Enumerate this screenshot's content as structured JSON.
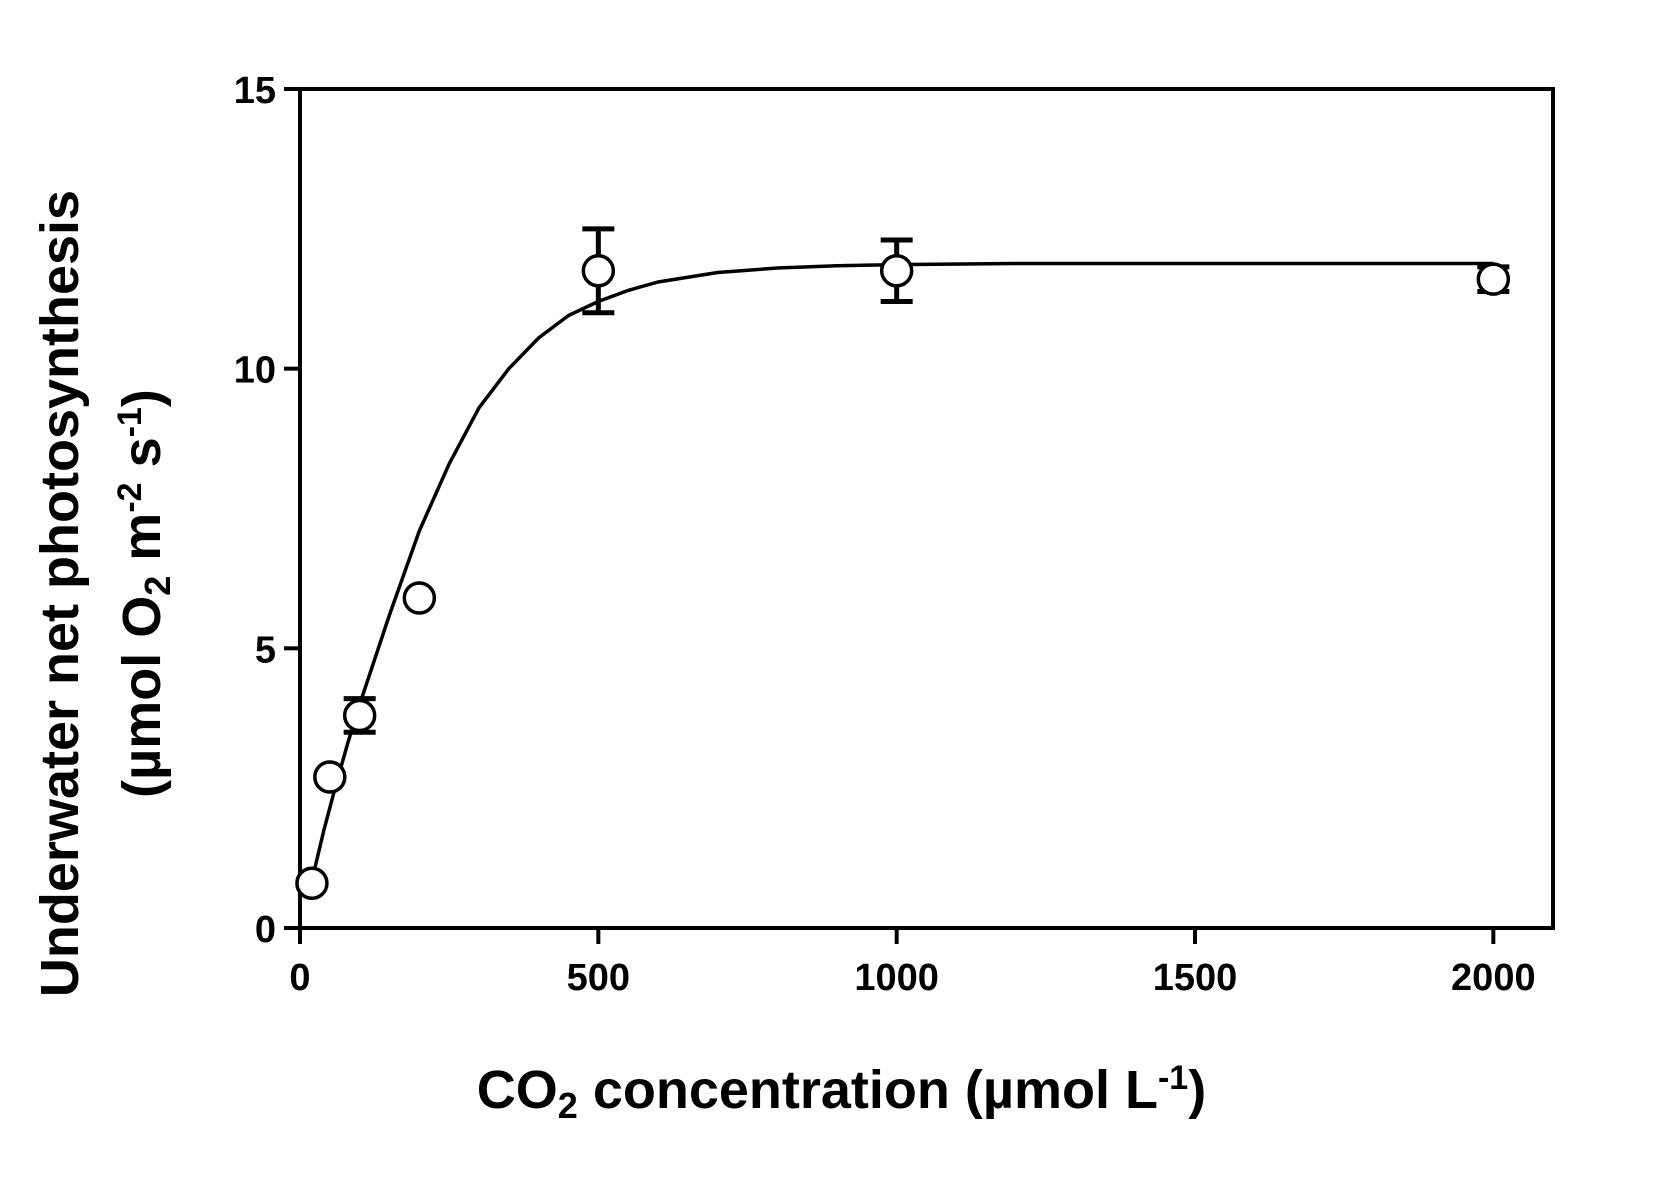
{
  "chart_data": {
    "type": "scatter",
    "title": "",
    "xlabel": {
      "parts": [
        {
          "t": "CO",
          "s": "n"
        },
        {
          "t": "2",
          "s": "sub"
        },
        {
          "t": " concentration (µmol L",
          "s": "n"
        },
        {
          "t": "-1",
          "s": "sup"
        },
        {
          "t": ")",
          "s": "n"
        }
      ]
    },
    "ylabel": {
      "line1": "Underwater net photosynthesis",
      "line2": {
        "parts": [
          {
            "t": "(µmol O",
            "s": "n"
          },
          {
            "t": "2",
            "s": "sub"
          },
          {
            "t": " m",
            "s": "n"
          },
          {
            "t": "-2",
            "s": "sup"
          },
          {
            "t": " s",
            "s": "n"
          },
          {
            "t": "-1",
            "s": "sup"
          },
          {
            "t": ")",
            "s": "n"
          }
        ]
      }
    },
    "xlim": [
      0,
      2100
    ],
    "ylim": [
      0,
      15
    ],
    "xticks": [
      0,
      500,
      1000,
      1500,
      2000
    ],
    "yticks": [
      0,
      5,
      10,
      15
    ],
    "grid": false,
    "legend": "none",
    "series": [
      {
        "marker": "open-circle",
        "x": [
          20,
          50,
          100,
          200,
          500,
          1000,
          2000
        ],
        "y": [
          0.8,
          2.7,
          3.8,
          5.9,
          11.75,
          11.75,
          11.6
        ],
        "err": [
          0,
          0,
          0.3,
          0,
          0.75,
          0.55,
          0.22
        ]
      }
    ],
    "fit_curve": {
      "model": "sigmoid",
      "x": [
        20,
        40,
        60,
        80,
        100,
        150,
        200,
        250,
        300,
        350,
        400,
        450,
        500,
        550,
        600,
        700,
        800,
        900,
        1000,
        1200,
        1400,
        1600,
        1800,
        2000
      ],
      "y": [
        0.85,
        1.75,
        2.55,
        3.3,
        4.0,
        5.6,
        7.1,
        8.3,
        9.3,
        10.0,
        10.55,
        10.95,
        11.2,
        11.4,
        11.55,
        11.72,
        11.8,
        11.84,
        11.86,
        11.88,
        11.88,
        11.88,
        11.88,
        11.88
      ]
    }
  }
}
